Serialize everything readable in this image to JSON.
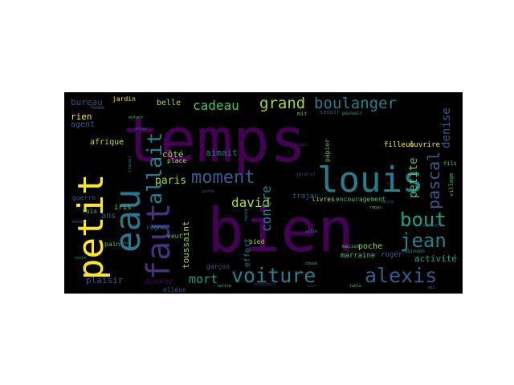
{
  "background": "#000000",
  "page_background": "#ffffff",
  "palette": [
    "#440154",
    "#46327e",
    "#365c8d",
    "#277f8e",
    "#1fa187",
    "#4ac16d",
    "#a0da39",
    "#fde725"
  ],
  "words": [
    {
      "text": "temps",
      "color": "#440154"
    },
    {
      "text": "bien",
      "color": "#440154"
    },
    {
      "text": "louis",
      "color": "#277f8e"
    },
    {
      "text": "petit",
      "color": "#fde725"
    },
    {
      "text": "eau",
      "color": "#2a788e"
    },
    {
      "text": "faut",
      "color": "#46327e"
    },
    {
      "text": "voiture",
      "color": "#277f8e"
    },
    {
      "text": "alexis",
      "color": "#365c8d"
    },
    {
      "text": "moment",
      "color": "#365c8d"
    },
    {
      "text": "allait",
      "color": "#277f8e"
    },
    {
      "text": "bout",
      "color": "#1fa187"
    },
    {
      "text": "jean",
      "color": "#277f8e"
    },
    {
      "text": "pascal",
      "color": "#365c8d"
    },
    {
      "text": "grand",
      "color": "#a0da39"
    },
    {
      "text": "boulanger",
      "color": "#277f8e"
    },
    {
      "text": "cadeau",
      "color": "#4ac16d"
    },
    {
      "text": "david",
      "color": "#b5de2b"
    },
    {
      "text": "contre",
      "color": "#277f8e"
    },
    {
      "text": "denise",
      "color": "#365c8d"
    },
    {
      "text": "petite",
      "color": "#4ac16d"
    },
    {
      "text": "paris",
      "color": "#a0da39"
    },
    {
      "text": "mort",
      "color": "#1fa187"
    },
    {
      "text": "plaisir",
      "color": "#365c8d"
    },
    {
      "text": "bureau",
      "color": "#3b528b"
    },
    {
      "text": "jardin",
      "color": "#fde725"
    },
    {
      "text": "rien",
      "color": "#fde725"
    },
    {
      "text": "agent",
      "color": "#365c8d"
    },
    {
      "text": "afrique",
      "color": "#b5de2b"
    },
    {
      "text": "belle",
      "color": "#b5de2b"
    },
    {
      "text": "aimait",
      "color": "#277f8e"
    },
    {
      "text": "côté",
      "color": "#a0da39"
    },
    {
      "text": "toussaint",
      "color": "#a0da39"
    },
    {
      "text": "activité",
      "color": "#1fa187"
    },
    {
      "text": "guerre",
      "color": "#365c8d"
    },
    {
      "text": "fois",
      "color": "#4ac16d"
    },
    {
      "text": "iris",
      "color": "#4ac16d"
    },
    {
      "text": "donner",
      "color": "#440154"
    },
    {
      "text": "effort",
      "color": "#277f8e"
    },
    {
      "text": "poche",
      "color": "#a0da39"
    },
    {
      "text": "marraine",
      "color": "#4ac16d"
    },
    {
      "text": "roger",
      "color": "#365c8d"
    },
    {
      "text": "pied",
      "color": "#a0da39"
    },
    {
      "text": "livres",
      "color": "#a0da39"
    },
    {
      "text": "encouragement",
      "color": "#4ac16d"
    },
    {
      "text": "trajac",
      "color": "#365c8d"
    },
    {
      "text": "filleul",
      "color": "#fde725"
    },
    {
      "text": "ouvrire",
      "color": "#fde725"
    },
    {
      "text": "place",
      "color": "#a0da39"
    },
    {
      "text": "règne",
      "color": "#277f8e"
    },
    {
      "text": "veut",
      "color": "#4ac16d"
    },
    {
      "text": "garçon",
      "color": "#365c8d"
    },
    {
      "text": "olléon",
      "color": "#365c8d"
    },
    {
      "text": "femme",
      "color": "#365c8d"
    },
    {
      "text": "pain",
      "color": "#4ac16d"
    },
    {
      "text": "papier",
      "color": "#4ac16d"
    },
    {
      "text": "maison",
      "color": "#4ac16d"
    },
    {
      "text": "savoir",
      "color": "#365c8d"
    },
    {
      "text": "mit",
      "color": "#4ac16d"
    },
    {
      "text": "pouvoir",
      "color": "#1fa187"
    },
    {
      "text": "général",
      "color": "#46327e"
    },
    {
      "text": "village",
      "color": "#4ac16d"
    },
    {
      "text": "robinson",
      "color": "#1fa187"
    },
    {
      "text": "société",
      "color": "#365c8d"
    },
    {
      "text": "fils",
      "color": "#4ac16d"
    },
    {
      "text": "ans",
      "color": "#365c8d"
    },
    {
      "text": "heure",
      "color": "#1fa187"
    },
    {
      "text": "année",
      "color": "#365c8d"
    },
    {
      "text": "repas",
      "color": "#4ac16d"
    },
    {
      "text": "monde",
      "color": "#365c8d"
    },
    {
      "text": "attendait",
      "color": "#46327e"
    },
    {
      "text": "chose",
      "color": "#4ac16d"
    },
    {
      "text": "vie",
      "color": "#365c8d"
    },
    {
      "text": "jour",
      "color": "#1fa187"
    },
    {
      "text": "travail",
      "color": "#277f8e"
    },
    {
      "text": "lettre",
      "color": "#4ac16d"
    },
    {
      "text": "école",
      "color": "#365c8d"
    },
    {
      "text": "ville",
      "color": "#1fa187"
    },
    {
      "text": "nuit",
      "color": "#46327e"
    },
    {
      "text": "enfant",
      "color": "#4ac16d"
    },
    {
      "text": "ami",
      "color": "#365c8d"
    },
    {
      "text": "route",
      "color": "#1fa187"
    },
    {
      "text": "porte",
      "color": "#365c8d"
    },
    {
      "text": "table",
      "color": "#4ac16d"
    },
    {
      "text": "soir",
      "color": "#46327e"
    }
  ]
}
